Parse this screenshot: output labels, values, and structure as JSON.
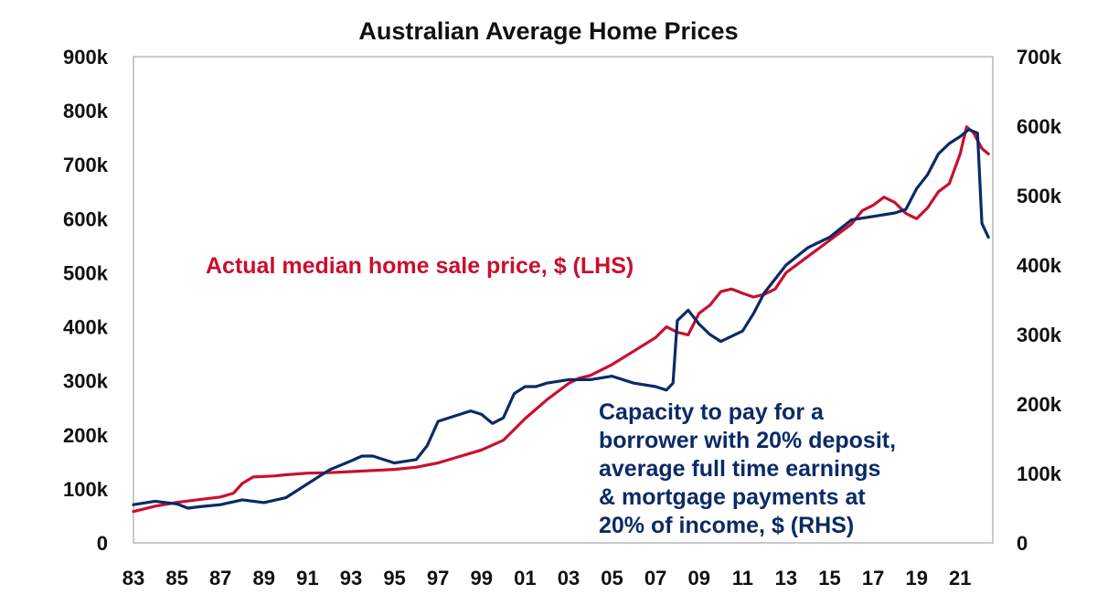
{
  "chart_data": {
    "type": "line",
    "title": "Australian Average Home Prices",
    "xlabel": "",
    "ylabel_left": "",
    "ylabel_right": "",
    "x_tick_labels": [
      "83",
      "85",
      "87",
      "89",
      "91",
      "93",
      "95",
      "97",
      "99",
      "01",
      "03",
      "05",
      "07",
      "09",
      "11",
      "13",
      "15",
      "17",
      "19",
      "21"
    ],
    "x_range": [
      1983,
      2022.5
    ],
    "y_left": {
      "range": [
        0,
        900000
      ],
      "tick_labels": [
        "0",
        "100k",
        "200k",
        "300k",
        "400k",
        "500k",
        "600k",
        "700k",
        "800k",
        "900k"
      ]
    },
    "y_right": {
      "range": [
        0,
        700000
      ],
      "tick_labels": [
        "0",
        "100k",
        "200k",
        "300k",
        "400k",
        "500k",
        "600k",
        "700k"
      ]
    },
    "grid": false,
    "colors": {
      "lhs_series": "#c8102e",
      "rhs_series": "#0b2a66",
      "frame": "#b8b8b8",
      "text": "#111111"
    },
    "series": [
      {
        "name": "Actual median home sale price, $ (LHS)",
        "axis": "left",
        "x": [
          1983,
          1984,
          1985,
          1986,
          1987,
          1987.6,
          1988,
          1988.5,
          1989,
          1989.5,
          1990,
          1991,
          1992,
          1993,
          1994,
          1995,
          1996,
          1997,
          1998,
          1999,
          2000,
          2001,
          2002,
          2003,
          2003.5,
          2004,
          2005,
          2006,
          2007,
          2007.5,
          2008,
          2008.5,
          2009,
          2009.5,
          2010,
          2010.5,
          2011,
          2011.5,
          2012,
          2012.5,
          2013,
          2014,
          2015,
          2016,
          2016.5,
          2017,
          2017.5,
          2018,
          2018.5,
          2019,
          2019.5,
          2020,
          2020.5,
          2021,
          2021.3,
          2021.6,
          2022,
          2022.3
        ],
        "values": [
          58000,
          68000,
          75000,
          80000,
          85000,
          92000,
          110000,
          122000,
          123000,
          124000,
          126000,
          129000,
          130000,
          132000,
          134000,
          136000,
          140000,
          148000,
          160000,
          172000,
          190000,
          230000,
          265000,
          295000,
          305000,
          310000,
          330000,
          355000,
          380000,
          400000,
          390000,
          385000,
          425000,
          440000,
          465000,
          470000,
          462000,
          455000,
          460000,
          470000,
          500000,
          530000,
          560000,
          590000,
          615000,
          625000,
          640000,
          630000,
          610000,
          600000,
          620000,
          650000,
          665000,
          720000,
          770000,
          760000,
          730000,
          720000
        ]
      },
      {
        "name": "Capacity to pay for a borrower with 20% deposit, average full time earnings & mortgage payments at 20% of income, $ (RHS)",
        "axis": "right",
        "x": [
          1983,
          1984,
          1985,
          1985.5,
          1986,
          1987,
          1988,
          1989,
          1990,
          1991,
          1992,
          1993,
          1993.5,
          1994,
          1995,
          1996,
          1996.5,
          1997,
          1998,
          1998.5,
          1999,
          1999.5,
          2000,
          2000.5,
          2001,
          2001.5,
          2002,
          2003,
          2004,
          2005,
          2006,
          2007,
          2007.5,
          2007.8,
          2008,
          2008.5,
          2009,
          2009.5,
          2010,
          2011,
          2011.5,
          2012,
          2013,
          2014,
          2015,
          2016,
          2017,
          2018,
          2018.5,
          2019,
          2019.5,
          2020,
          2020.5,
          2021,
          2021.4,
          2021.8,
          2022,
          2022.3
        ],
        "values": [
          55000,
          60000,
          56000,
          50000,
          52000,
          55000,
          62000,
          58000,
          65000,
          85000,
          105000,
          118000,
          125000,
          125000,
          115000,
          120000,
          140000,
          175000,
          185000,
          190000,
          185000,
          172000,
          180000,
          215000,
          225000,
          225000,
          230000,
          235000,
          235000,
          240000,
          230000,
          225000,
          220000,
          230000,
          320000,
          335000,
          315000,
          300000,
          290000,
          305000,
          330000,
          360000,
          400000,
          425000,
          440000,
          465000,
          470000,
          475000,
          480000,
          510000,
          530000,
          560000,
          575000,
          585000,
          595000,
          590000,
          460000,
          440000
        ]
      }
    ],
    "annotations": [
      {
        "text": "Actual median home sale price, $ (LHS)",
        "color": "#c8102e"
      },
      {
        "lines": [
          "Capacity to pay for a",
          "borrower with 20% deposit,",
          "average full time earnings",
          "& mortgage payments at",
          "20% of income, $ (RHS)"
        ],
        "color": "#0b2a66"
      }
    ]
  }
}
